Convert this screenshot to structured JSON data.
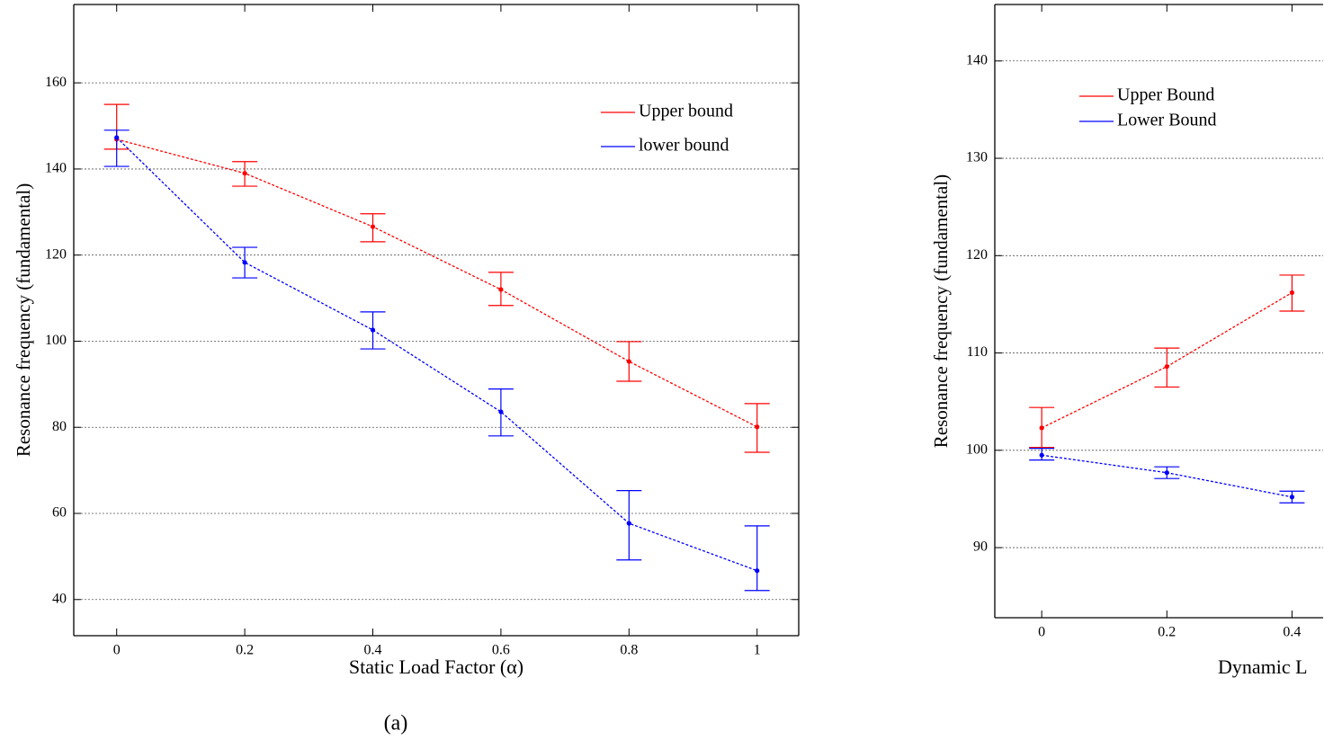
{
  "chart_data": [
    {
      "type": "line",
      "caption": "(a)",
      "x_label": "Static Load Factor (α)",
      "y_label": "Resonance frequency (fundamental)",
      "x": [
        0,
        0.2,
        0.4,
        0.6,
        0.8,
        1
      ],
      "xlim": [
        -0.067,
        1.065
      ],
      "ylim": [
        31.6,
        178.2
      ],
      "xticks": [
        0,
        0.2,
        0.4,
        0.6,
        0.8,
        1
      ],
      "yticks": [
        40,
        60,
        80,
        100,
        120,
        140,
        160
      ],
      "grid": true,
      "legend": "upper right",
      "series": [
        {
          "name": "Upper bound",
          "color": "#ff0000",
          "values": [
            146.9,
            139.0,
            126.6,
            112.0,
            95.3,
            80.1
          ],
          "error_low": [
            144.6,
            136.0,
            123.1,
            108.3,
            90.7,
            74.2
          ],
          "error_high": [
            155.0,
            141.7,
            129.6,
            116.0,
            99.9,
            85.5
          ]
        },
        {
          "name": "lower bound",
          "color": "#0000ff",
          "values": [
            147.3,
            118.3,
            102.6,
            83.6,
            57.7,
            46.7
          ],
          "error_low": [
            140.6,
            114.7,
            98.2,
            78.0,
            49.2,
            42.1
          ],
          "error_high": [
            149.0,
            121.8,
            106.8,
            88.9,
            65.3,
            57.1
          ]
        }
      ]
    },
    {
      "type": "line",
      "x_label": "Dynamic L",
      "y_label": "Resonance frequency (fundamental)",
      "x": [
        0,
        0.2,
        0.4
      ],
      "xlim": [
        -0.075,
        1.075
      ],
      "ylim": [
        82.8,
        145.8
      ],
      "xticks": [
        0,
        0.2,
        0.4
      ],
      "yticks": [
        90,
        100,
        110,
        120,
        130,
        140
      ],
      "grid": true,
      "legend": "upper left",
      "series": [
        {
          "name": "Upper Bound",
          "color": "#ff0000",
          "values": [
            102.3,
            108.6,
            116.2
          ],
          "error_low": [
            100.3,
            106.5,
            114.3
          ],
          "error_high": [
            104.4,
            110.5,
            118.0
          ]
        },
        {
          "name": "Lower Bound",
          "color": "#0000ff",
          "values": [
            99.5,
            97.7,
            95.2
          ],
          "error_low": [
            99.0,
            97.1,
            94.6
          ],
          "error_high": [
            100.2,
            98.3,
            95.8
          ]
        }
      ]
    }
  ]
}
